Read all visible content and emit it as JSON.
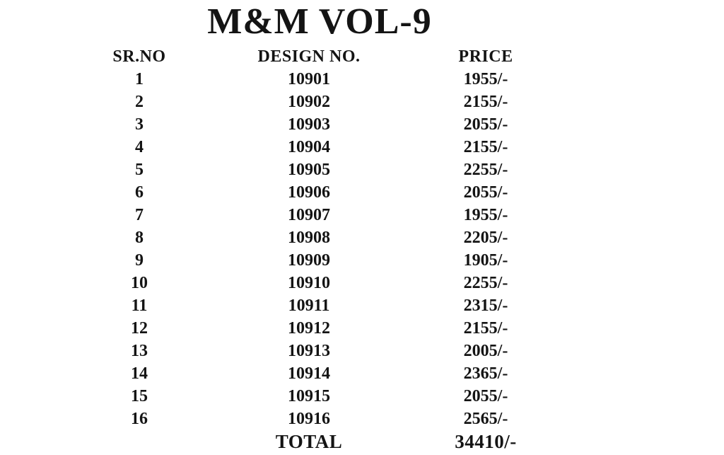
{
  "title": "M&M VOL-9",
  "colors": {
    "background": "#ffffff",
    "text": "#141414"
  },
  "table": {
    "headers": [
      "SR.NO",
      "DESIGN NO.",
      "PRICE"
    ],
    "rows": [
      {
        "sr": "1",
        "design": "10901",
        "price": "1955/-"
      },
      {
        "sr": "2",
        "design": "10902",
        "price": "2155/-"
      },
      {
        "sr": "3",
        "design": "10903",
        "price": "2055/-"
      },
      {
        "sr": "4",
        "design": "10904",
        "price": "2155/-"
      },
      {
        "sr": "5",
        "design": "10905",
        "price": "2255/-"
      },
      {
        "sr": "6",
        "design": "10906",
        "price": "2055/-"
      },
      {
        "sr": "7",
        "design": "10907",
        "price": "1955/-"
      },
      {
        "sr": "8",
        "design": "10908",
        "price": "2205/-"
      },
      {
        "sr": "9",
        "design": "10909",
        "price": "1905/-"
      },
      {
        "sr": "10",
        "design": "10910",
        "price": "2255/-"
      },
      {
        "sr": "11",
        "design": "10911",
        "price": "2315/-"
      },
      {
        "sr": "12",
        "design": "10912",
        "price": "2155/-"
      },
      {
        "sr": "13",
        "design": "10913",
        "price": "2005/-"
      },
      {
        "sr": "14",
        "design": "10914",
        "price": "2365/-"
      },
      {
        "sr": "15",
        "design": "10915",
        "price": "2055/-"
      },
      {
        "sr": "16",
        "design": "10916",
        "price": "2565/-"
      }
    ],
    "total_label": "TOTAL",
    "total_value": "34410/-"
  }
}
